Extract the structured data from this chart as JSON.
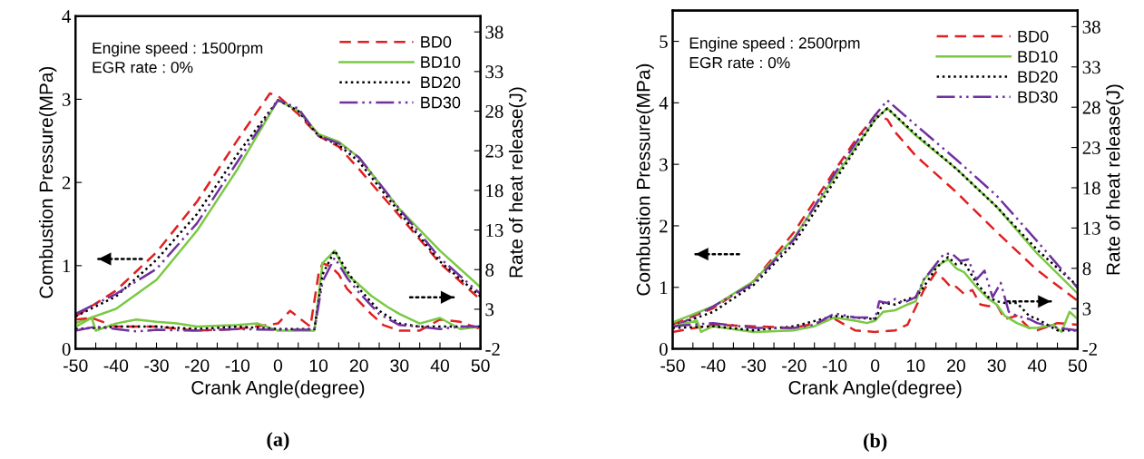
{
  "chart_data": [
    {
      "type": "line",
      "xlabel": "Crank Angle(degree)",
      "ylabel": "Combustion Pressure(MPa)",
      "y2label": "Rate of heat release(J)",
      "xlim": [
        -50,
        50
      ],
      "xticks": [
        -50,
        {
          "value": -45,
          "label": null
        },
        -40,
        {
          "value": -35,
          "label": null
        },
        -30,
        {
          "value": -25,
          "label": null
        },
        -20,
        {
          "value": -15,
          "label": null
        },
        -10,
        {
          "value": -5,
          "label": null
        },
        0,
        {
          "value": 5,
          "label": null
        },
        10,
        {
          "value": 15,
          "label": null
        },
        20,
        {
          "value": 25,
          "label": null
        },
        30,
        {
          "value": 35,
          "label": null
        },
        40,
        {
          "value": 45,
          "label": null
        },
        50
      ],
      "ylim": [
        0,
        4
      ],
      "yticks": [
        0,
        1,
        2,
        3,
        4
      ],
      "y2lim": [
        -2,
        40
      ],
      "y2ticks": [
        -2,
        3,
        8,
        13,
        18,
        23,
        28,
        33,
        38
      ],
      "legend": "top right",
      "grid": false,
      "marker": "none",
      "annotations": [
        "Engine speed : 1500rpm",
        "EGR rate : 0%",
        "(a)"
      ],
      "series": [
        {
          "name": "BD0",
          "color": "#e02020",
          "line_style": "dashed",
          "x": [
            -50,
            -40,
            -30,
            -20,
            -10,
            -5,
            -2,
            0,
            5,
            10,
            15,
            20,
            30,
            40,
            50
          ],
          "values": [
            0.39,
            0.7,
            1.16,
            1.77,
            2.51,
            2.86,
            3.07,
            3.04,
            2.82,
            2.56,
            2.43,
            2.16,
            1.6,
            1.03,
            0.59
          ]
        },
        {
          "name": "BD10",
          "color": "#7ac943",
          "line_style": "solid",
          "x": [
            -50,
            -40,
            -30,
            -20,
            -10,
            0,
            5,
            10,
            15,
            20,
            30,
            40,
            50
          ],
          "values": [
            0.31,
            0.48,
            0.83,
            1.42,
            2.16,
            2.99,
            2.86,
            2.58,
            2.49,
            2.3,
            1.68,
            1.18,
            0.74
          ]
        },
        {
          "name": "BD20",
          "color": "#000000",
          "line_style": "dotted",
          "x": [
            -50,
            -40,
            -30,
            -20,
            -10,
            0,
            5,
            10,
            15,
            20,
            30,
            40,
            50
          ],
          "values": [
            0.39,
            0.63,
            1.07,
            1.62,
            2.34,
            2.99,
            2.86,
            2.56,
            2.45,
            2.25,
            1.64,
            1.05,
            0.63
          ]
        },
        {
          "name": "BD30",
          "color": "#7030a0",
          "line_style": "dashdot",
          "x": [
            -50,
            -40,
            -30,
            -20,
            -10,
            0,
            5,
            10,
            15,
            20,
            30,
            40,
            50
          ],
          "values": [
            0.42,
            0.66,
            0.96,
            1.51,
            2.25,
            2.99,
            2.89,
            2.56,
            2.47,
            2.3,
            1.68,
            1.09,
            0.66
          ]
        },
        {
          "axis": "y2",
          "color": "#e02020",
          "line_style": "dashed",
          "x": [
            -50,
            -46,
            -40,
            -30,
            -20,
            -10,
            0,
            3,
            7,
            8,
            10,
            11,
            13,
            15,
            17,
            20,
            23,
            26,
            30,
            35,
            40,
            45,
            50
          ],
          "values": [
            1.7,
            1.9,
            0.8,
            0.8,
            0.3,
            0.5,
            1.2,
            2.8,
            1.2,
            0.8,
            7.4,
            8.8,
            8.4,
            7.4,
            5.6,
            4.0,
            2.4,
            1.0,
            0.3,
            0.3,
            1.7,
            1.4,
            0.5
          ]
        },
        {
          "axis": "y2",
          "color": "#7ac943",
          "line_style": "solid",
          "x": [
            -50,
            -46,
            -45,
            -40,
            -35,
            -30,
            -25,
            -20,
            -10,
            -5,
            0,
            5,
            9,
            11,
            14,
            17,
            20,
            23,
            27,
            30,
            35,
            40,
            45,
            50
          ],
          "values": [
            0.8,
            1.9,
            0.3,
            1.2,
            1.7,
            1.4,
            1.2,
            0.8,
            1.0,
            1.2,
            0.3,
            0.3,
            0.3,
            8.8,
            10.4,
            7.4,
            6.1,
            4.7,
            3.3,
            2.4,
            1.2,
            1.9,
            0.5,
            0.8
          ]
        },
        {
          "axis": "y2",
          "color": "#000000",
          "line_style": "dotted",
          "x": [
            -50,
            -40,
            -30,
            -20,
            -10,
            0,
            9,
            11,
            14,
            17,
            20,
            25,
            30,
            35,
            40,
            45,
            50
          ],
          "values": [
            0.5,
            0.8,
            0.8,
            0.5,
            0.8,
            0.5,
            0.5,
            7.4,
            10.4,
            7.9,
            5.6,
            2.8,
            1.2,
            0.8,
            0.8,
            0.8,
            0.8
          ]
        },
        {
          "axis": "y2",
          "color": "#7030a0",
          "line_style": "dashdot",
          "x": [
            -50,
            -45,
            -40,
            -35,
            -30,
            -20,
            -10,
            0,
            9,
            11,
            14,
            17,
            20,
            25,
            30,
            35,
            40,
            45,
            50
          ],
          "values": [
            0.3,
            0.8,
            0.5,
            0.2,
            0.4,
            0.3,
            0.5,
            0.4,
            0.4,
            6.5,
            9.5,
            7.0,
            5.1,
            2.4,
            1.0,
            0.8,
            0.5,
            0.8,
            0.8
          ]
        }
      ]
    },
    {
      "type": "line",
      "xlabel": "Crank Angle(degree)",
      "ylabel": "Combustion Pressure(MPa)",
      "y2label": "Rate of heat release(J)",
      "xlim": [
        -50,
        50
      ],
      "xticks": [
        -50,
        {
          "value": -45,
          "label": null
        },
        -40,
        {
          "value": -35,
          "label": null
        },
        -30,
        {
          "value": -25,
          "label": null
        },
        -20,
        {
          "value": -15,
          "label": null
        },
        -10,
        {
          "value": -5,
          "label": null
        },
        0,
        {
          "value": 5,
          "label": null
        },
        10,
        {
          "value": 15,
          "label": null
        },
        20,
        {
          "value": 25,
          "label": null
        },
        30,
        {
          "value": 35,
          "label": null
        },
        40,
        {
          "value": 45,
          "label": null
        },
        50
      ],
      "ylim": [
        0,
        5.5
      ],
      "yticks": [
        0,
        1,
        2,
        3,
        4,
        5
      ],
      "y2lim": [
        -2,
        40
      ],
      "y2ticks": [
        -2,
        3,
        8,
        13,
        18,
        23,
        28,
        33,
        38
      ],
      "legend": "top right",
      "grid": false,
      "marker": "none",
      "annotations": [
        "Engine speed : 2500rpm",
        "EGR rate : 0%",
        "(b)"
      ],
      "series": [
        {
          "name": "BD0",
          "color": "#e02020",
          "line_style": "dashed",
          "x": [
            -50,
            -40,
            -30,
            -20,
            -10,
            -5,
            0,
            3,
            5,
            10,
            20,
            30,
            40,
            50
          ],
          "values": [
            0.4,
            0.66,
            1.1,
            1.9,
            2.9,
            3.38,
            3.8,
            3.73,
            3.52,
            3.14,
            2.55,
            1.9,
            1.28,
            0.78
          ]
        },
        {
          "name": "BD10",
          "color": "#7ac943",
          "line_style": "solid",
          "x": [
            -50,
            -40,
            -30,
            -20,
            -10,
            0,
            3,
            10,
            20,
            30,
            40,
            50
          ],
          "values": [
            0.43,
            0.69,
            1.1,
            1.81,
            2.79,
            3.73,
            3.91,
            3.47,
            2.93,
            2.31,
            1.55,
            0.9
          ]
        },
        {
          "name": "BD20",
          "color": "#000000",
          "line_style": "dotted",
          "x": [
            -50,
            -40,
            -30,
            -20,
            -10,
            0,
            3,
            10,
            20,
            30,
            40,
            50
          ],
          "values": [
            0.37,
            0.6,
            1.04,
            1.72,
            2.73,
            3.73,
            3.91,
            3.49,
            2.93,
            2.31,
            1.61,
            1.02
          ]
        },
        {
          "name": "BD30",
          "color": "#7030a0",
          "line_style": "dashdot",
          "x": [
            -50,
            -40,
            -30,
            -20,
            -10,
            0,
            3,
            10,
            20,
            30,
            40,
            50
          ],
          "values": [
            0.34,
            0.69,
            1.07,
            1.78,
            2.85,
            3.8,
            4.04,
            3.64,
            3.08,
            2.49,
            1.75,
            0.99
          ]
        },
        {
          "axis": "y2",
          "color": "#e02020",
          "line_style": "dashed",
          "x": [
            -50,
            -40,
            -30,
            -20,
            -10,
            -5,
            0,
            5,
            8,
            12,
            15,
            17,
            19,
            20,
            22,
            24,
            26,
            28,
            30,
            32,
            35,
            38,
            40,
            45,
            50
          ],
          "values": [
            0.1,
            1.0,
            0.8,
            0.6,
            1.7,
            0.3,
            0.1,
            0.3,
            1.0,
            5.3,
            7.5,
            6.6,
            5.5,
            5.7,
            4.8,
            5.3,
            3.5,
            3.3,
            3.5,
            1.7,
            2.1,
            0.6,
            0.3,
            1.2,
            1.0
          ]
        },
        {
          "axis": "y2",
          "color": "#7ac943",
          "line_style": "solid",
          "x": [
            -50,
            -44,
            -43,
            -40,
            -30,
            -20,
            -15,
            -10,
            -5,
            -2,
            0,
            2,
            5,
            8,
            10,
            12,
            15,
            18,
            20,
            22,
            25,
            28,
            30,
            32,
            35,
            38,
            40,
            44,
            46,
            48,
            50
          ],
          "values": [
            0.8,
            1.5,
            0.1,
            0.8,
            0.1,
            0.3,
            0.8,
            1.9,
            1.5,
            1.2,
            1.5,
            2.6,
            2.8,
            3.5,
            3.9,
            6.6,
            8.2,
            9.1,
            8.0,
            7.5,
            5.7,
            4.2,
            3.5,
            2.1,
            1.2,
            0.6,
            0.6,
            1.0,
            0.1,
            2.6,
            1.7
          ]
        },
        {
          "axis": "y2",
          "color": "#000000",
          "line_style": "dotted",
          "x": [
            -50,
            -40,
            -30,
            -20,
            -10,
            -5,
            0,
            2,
            5,
            8,
            10,
            12,
            15,
            18,
            20,
            22,
            25,
            28,
            30,
            32,
            35,
            38,
            40,
            45,
            50
          ],
          "values": [
            0.6,
            0.8,
            0.3,
            0.8,
            2.1,
            1.9,
            1.7,
            3.7,
            3.5,
            4.2,
            4.4,
            5.7,
            8.0,
            9.4,
            8.5,
            8.7,
            6.2,
            4.4,
            3.9,
            3.7,
            3.7,
            2.1,
            1.7,
            0.3,
            0.3
          ]
        },
        {
          "axis": "y2",
          "color": "#7030a0",
          "line_style": "dashdot",
          "x": [
            -50,
            -40,
            -30,
            -20,
            -15,
            -10,
            -5,
            -1,
            0,
            1,
            3,
            5,
            7,
            10,
            12,
            15,
            17,
            19,
            21,
            23,
            25,
            27,
            29,
            31,
            33,
            35,
            38,
            40,
            45,
            50
          ],
          "values": [
            0.8,
            1.2,
            0.6,
            0.6,
            1.0,
            2.4,
            1.9,
            1.9,
            1.7,
            3.9,
            3.7,
            4.2,
            3.7,
            4.4,
            6.6,
            8.5,
            9.8,
            9.8,
            8.9,
            9.1,
            6.6,
            7.7,
            4.4,
            6.2,
            2.6,
            2.1,
            1.7,
            1.2,
            0.6,
            0.3
          ]
        }
      ]
    }
  ]
}
